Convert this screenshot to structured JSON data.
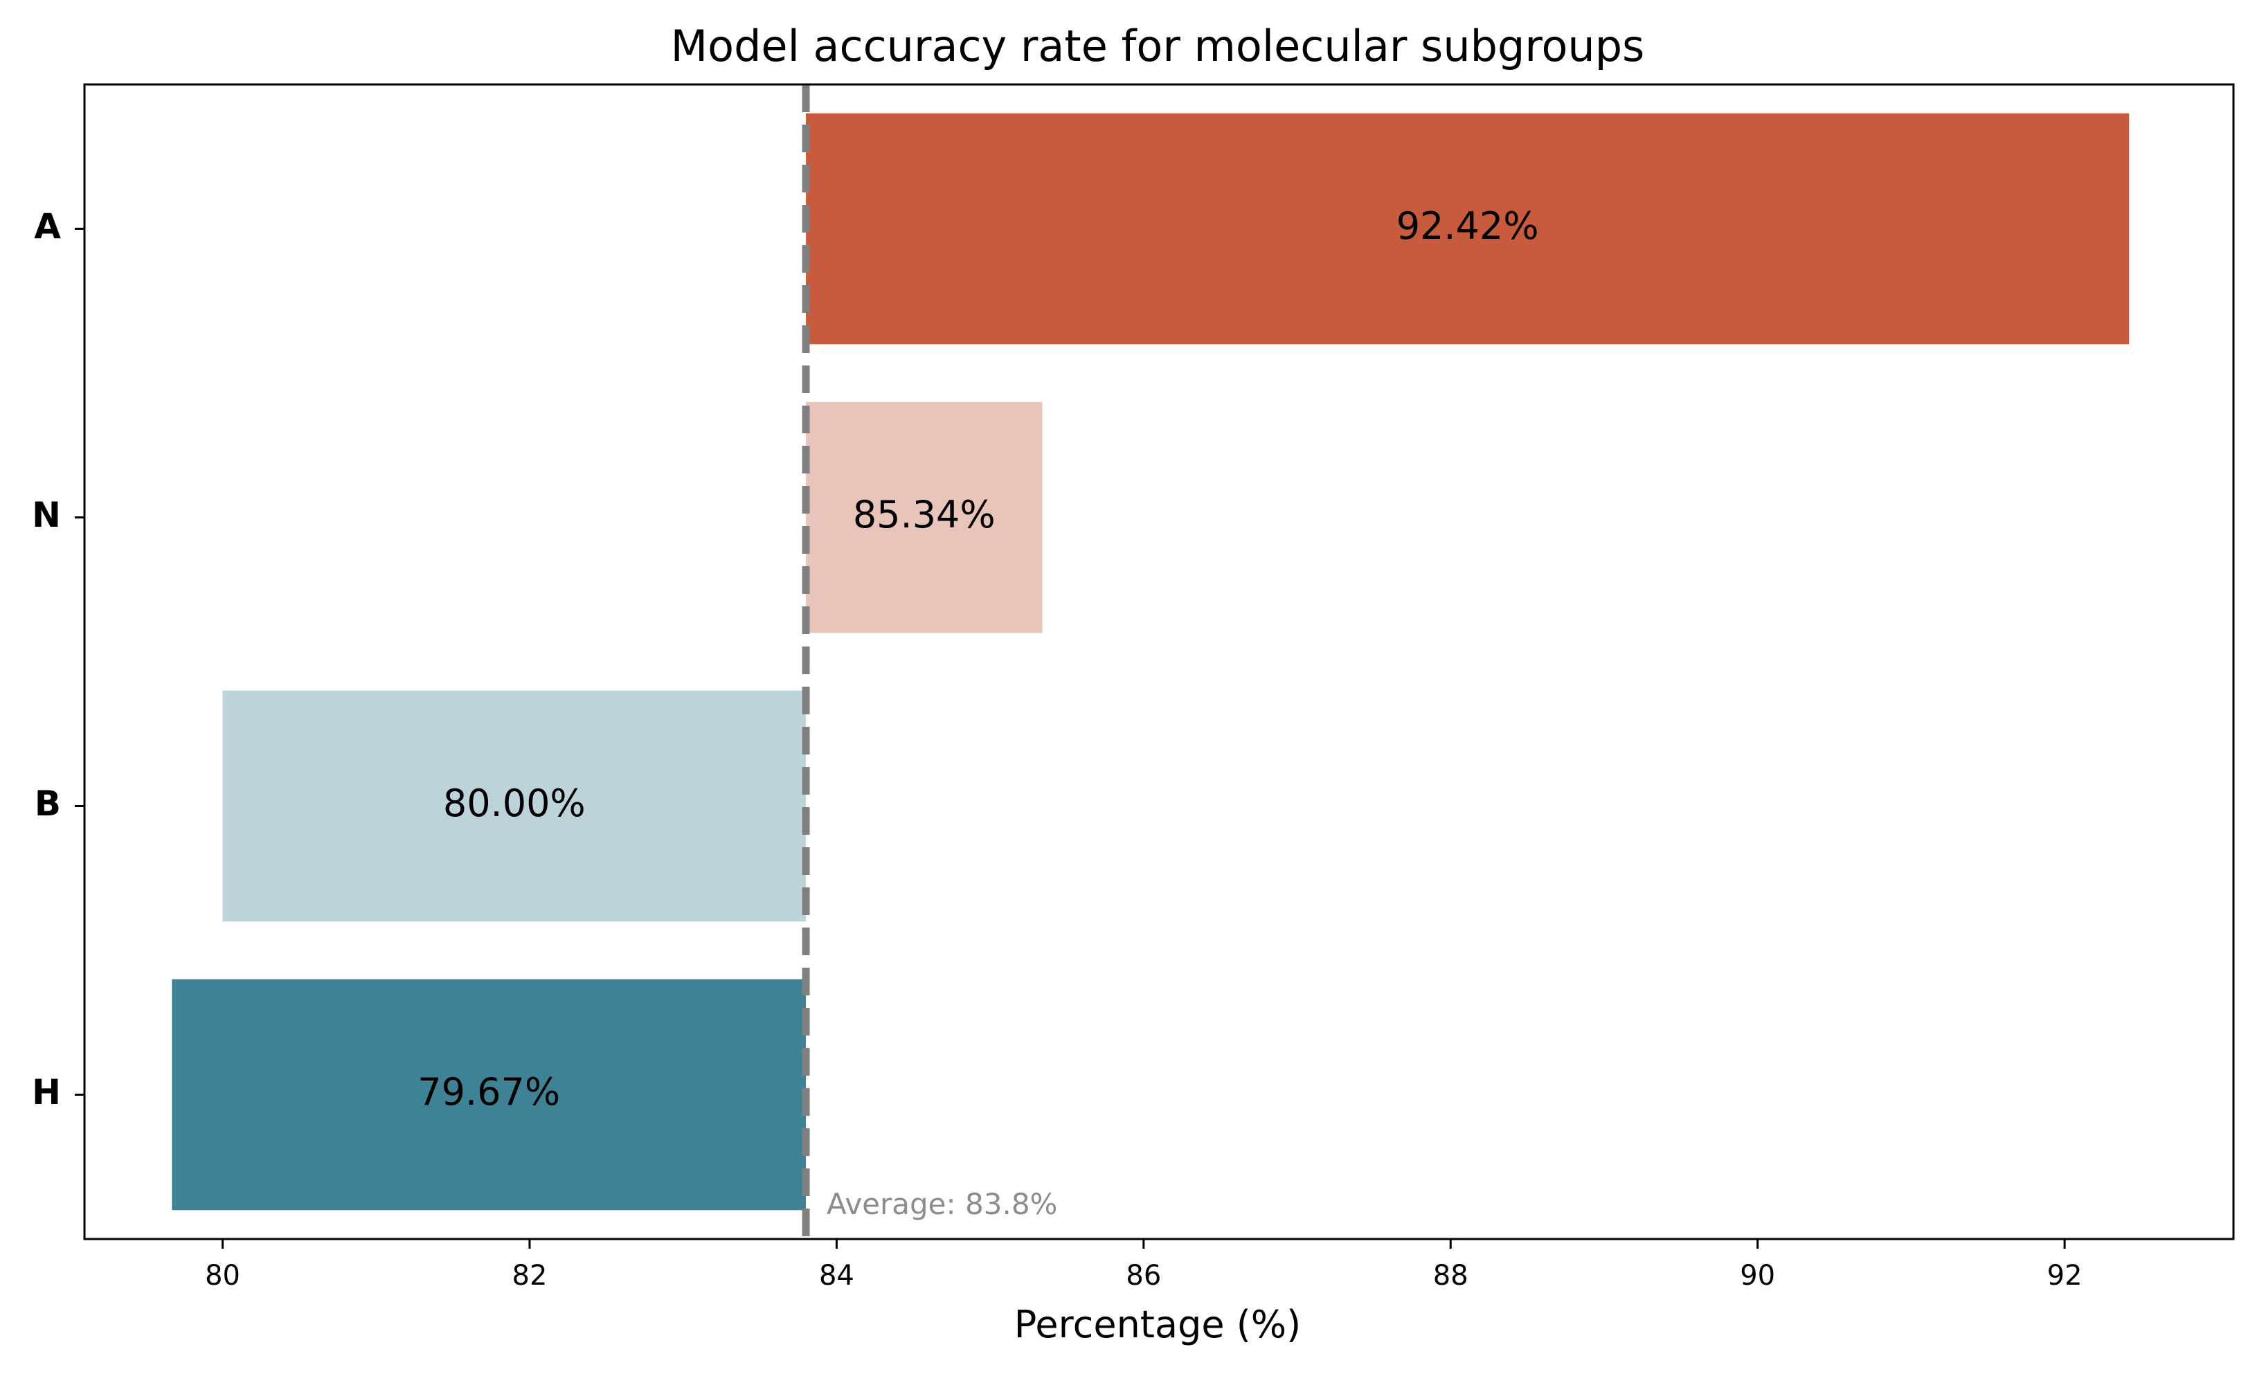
{
  "chart_data": {
    "type": "bar",
    "orientation": "horizontal",
    "title": "Model accuracy rate for molecular subgroups",
    "xlabel": "Percentage (%)",
    "ylabel": "",
    "categories": [
      "A",
      "N",
      "B",
      "H"
    ],
    "values": [
      92.42,
      85.34,
      80.0,
      79.67
    ],
    "value_labels": [
      "92.42%",
      "85.34%",
      "80.00%",
      "79.67%"
    ],
    "bar_colors": [
      "#c85a3e",
      "#e9c4ba",
      "#bcd3da",
      "#3f8296"
    ],
    "baseline": 83.8,
    "reference_line": {
      "value": 83.8,
      "label": "Average: 83.8%",
      "color": "#808080",
      "style": "dashed"
    },
    "xlim": [
      79.1,
      93.1
    ],
    "xticks": [
      80,
      82,
      84,
      86,
      88,
      90,
      92
    ],
    "xtick_labels": [
      "80",
      "82",
      "84",
      "86",
      "88",
      "90",
      "92"
    ],
    "grid": false,
    "legend": "none"
  }
}
